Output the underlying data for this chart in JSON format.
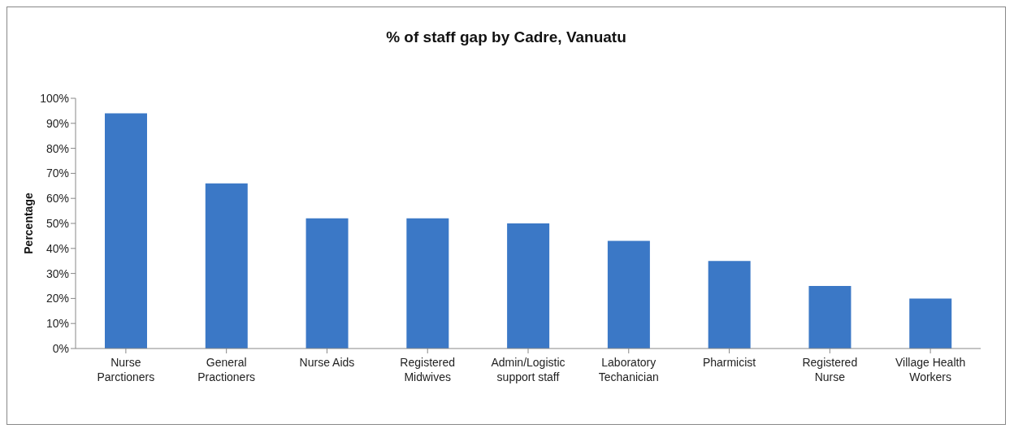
{
  "chart_data": {
    "type": "bar",
    "title": "% of staff gap by Cadre, Vanuatu",
    "ylabel": "Percentage",
    "categories": [
      "Nurse Parctioners",
      "General Practioners",
      "Nurse Aids",
      "Registered Midwives",
      "Admin/Logistic support staff",
      "Laboratory Techanician",
      "Pharmicist",
      "Registered Nurse",
      "Village Health Workers"
    ],
    "values": [
      94,
      66,
      52,
      52,
      50,
      43,
      35,
      25,
      20
    ],
    "color": "#3b78c6",
    "ylim": [
      0,
      100
    ],
    "yticks": [
      {
        "value": 0,
        "label": "0%"
      },
      {
        "value": 10,
        "label": "10%"
      },
      {
        "value": 20,
        "label": "20%"
      },
      {
        "value": 30,
        "label": "30%"
      },
      {
        "value": 40,
        "label": "40%"
      },
      {
        "value": 50,
        "label": "50%"
      },
      {
        "value": 60,
        "label": "60%"
      },
      {
        "value": 70,
        "label": "70%"
      },
      {
        "value": 80,
        "label": "80%"
      },
      {
        "value": 90,
        "label": "90%"
      },
      {
        "value": 100,
        "label": "100%"
      }
    ],
    "grid": false,
    "legend": false
  }
}
